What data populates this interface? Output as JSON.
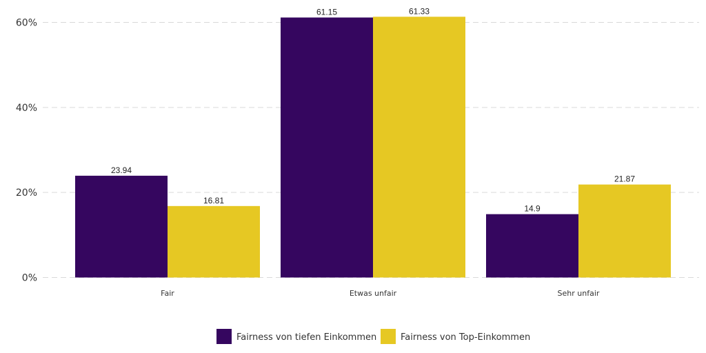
{
  "chart_data": {
    "type": "bar",
    "categories": [
      "Fair",
      "Etwas unfair",
      "Sehr unfair"
    ],
    "series": [
      {
        "name": "Fairness von tiefen Einkommen",
        "values": [
          23.94,
          61.15,
          14.9
        ],
        "color": "#35065f"
      },
      {
        "name": "Fairness von Top-Einkommen",
        "values": [
          16.81,
          61.33,
          21.87
        ],
        "color": "#e6c823"
      }
    ],
    "data_labels": [
      [
        "23.94",
        "61.15",
        "14.9"
      ],
      [
        "16.81",
        "61.33",
        "21.87"
      ]
    ],
    "ylim": [
      0,
      62
    ],
    "y_ticks": [
      0,
      20,
      40,
      60
    ],
    "y_tick_labels": [
      "0%",
      "20%",
      "40%",
      "60%"
    ],
    "grid": true,
    "legend_position": "bottom-center"
  }
}
